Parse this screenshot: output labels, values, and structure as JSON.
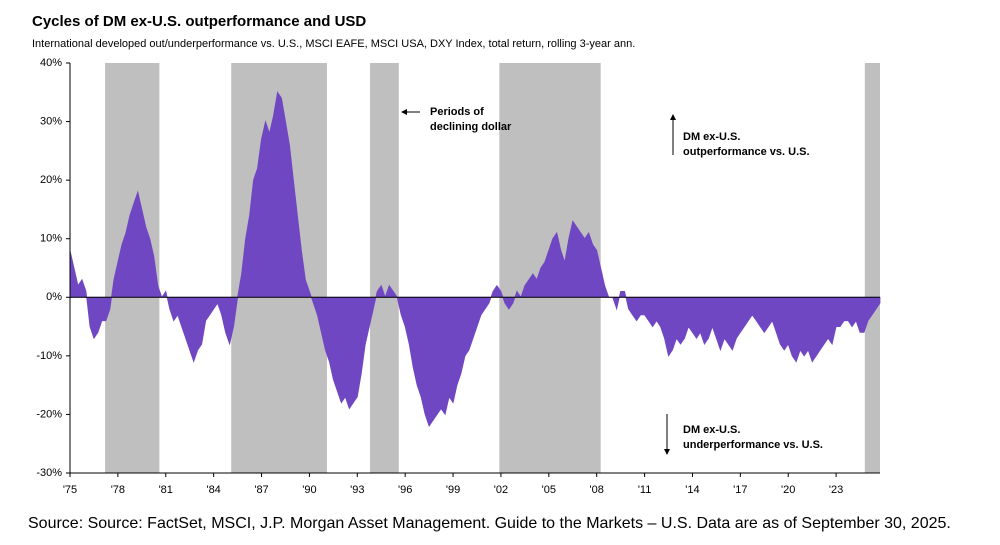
{
  "chart_data": {
    "type": "area",
    "title": "Cycles of DM ex-U.S. outperformance and USD",
    "subtitle": "International developed out/underperformance vs. U.S., MSCI EAFE, MSCI USA, DXY Index, total return, rolling 3-year ann.",
    "source": "Source: Source: FactSet, MSCI, J.P. Morgan Asset Management. Guide to the Markets – U.S. Data are as of September 30, 2025.",
    "color": "#7047c2",
    "shaded": {
      "color": "#bfbfbf",
      "label": [
        "Periods of",
        "declining dollar"
      ],
      "ranges": [
        [
          1977.2,
          1980.6
        ],
        [
          1985.1,
          1991.1
        ],
        [
          1993.8,
          1995.6
        ],
        [
          2001.9,
          2008.25
        ],
        [
          2024.8,
          2025.75
        ]
      ]
    },
    "annotations": [
      {
        "text": [
          "DM ex-U.S.",
          "outperformance vs. U.S."
        ]
      },
      {
        "text": [
          "DM ex-U.S.",
          "underperformance vs. U.S."
        ]
      }
    ],
    "xlim": [
      1975,
      2025.75
    ],
    "ylim": [
      -30,
      40
    ],
    "xticks": [
      {
        "value": 1975,
        "label": "'75"
      },
      {
        "value": 1978,
        "label": "'78"
      },
      {
        "value": 1981,
        "label": "'81"
      },
      {
        "value": 1984,
        "label": "'84"
      },
      {
        "value": 1987,
        "label": "'87"
      },
      {
        "value": 1990,
        "label": "'90"
      },
      {
        "value": 1993,
        "label": "'93"
      },
      {
        "value": 1996,
        "label": "'96"
      },
      {
        "value": 1999,
        "label": "'99"
      },
      {
        "value": 2002,
        "label": "'02"
      },
      {
        "value": 2005,
        "label": "'05"
      },
      {
        "value": 2008,
        "label": "'08"
      },
      {
        "value": 2011,
        "label": "'11"
      },
      {
        "value": 2014,
        "label": "'14"
      },
      {
        "value": 2017,
        "label": "'17"
      },
      {
        "value": 2020,
        "label": "'20"
      },
      {
        "value": 2023,
        "label": "'23"
      }
    ],
    "yticks": [
      {
        "value": 40,
        "label": "40%"
      },
      {
        "value": 30,
        "label": "30%"
      },
      {
        "value": 20,
        "label": "20%"
      },
      {
        "value": 10,
        "label": "10%"
      },
      {
        "value": 0,
        "label": "0%"
      },
      {
        "value": -10,
        "label": "-10%"
      },
      {
        "value": -20,
        "label": "-20%"
      },
      {
        "value": -30,
        "label": "-30%"
      }
    ],
    "x": [
      1975,
      1975.25,
      1975.5,
      1975.75,
      1976,
      1976.25,
      1976.5,
      1976.75,
      1977,
      1977.25,
      1977.5,
      1977.75,
      1978,
      1978.25,
      1978.5,
      1978.75,
      1979,
      1979.25,
      1979.5,
      1979.75,
      1980,
      1980.25,
      1980.5,
      1980.75,
      1981,
      1981.25,
      1981.5,
      1981.75,
      1982,
      1982.25,
      1982.5,
      1982.75,
      1983,
      1983.25,
      1983.5,
      1983.75,
      1984,
      1984.25,
      1984.5,
      1984.75,
      1985,
      1985.25,
      1985.5,
      1985.75,
      1986,
      1986.25,
      1986.5,
      1986.75,
      1987,
      1987.25,
      1987.5,
      1987.75,
      1988,
      1988.25,
      1988.5,
      1988.75,
      1989,
      1989.25,
      1989.5,
      1989.75,
      1990,
      1990.25,
      1990.5,
      1990.75,
      1991,
      1991.25,
      1991.5,
      1991.75,
      1992,
      1992.25,
      1992.5,
      1992.75,
      1993,
      1993.25,
      1993.5,
      1993.75,
      1994,
      1994.25,
      1994.5,
      1994.75,
      1995,
      1995.25,
      1995.5,
      1995.75,
      1996,
      1996.25,
      1996.5,
      1996.75,
      1997,
      1997.25,
      1997.5,
      1997.75,
      1998,
      1998.25,
      1998.5,
      1998.75,
      1999,
      1999.25,
      1999.5,
      1999.75,
      2000,
      2000.25,
      2000.5,
      2000.75,
      2001,
      2001.25,
      2001.5,
      2001.75,
      2002,
      2002.25,
      2002.5,
      2002.75,
      2003,
      2003.25,
      2003.5,
      2003.75,
      2004,
      2004.25,
      2004.5,
      2004.75,
      2005,
      2005.25,
      2005.5,
      2005.75,
      2006,
      2006.25,
      2006.5,
      2006.75,
      2007,
      2007.25,
      2007.5,
      2007.75,
      2008,
      2008.25,
      2008.5,
      2008.75,
      2009,
      2009.25,
      2009.5,
      2009.75,
      2010,
      2010.25,
      2010.5,
      2010.75,
      2011,
      2011.25,
      2011.5,
      2011.75,
      2012,
      2012.25,
      2012.5,
      2012.75,
      2013,
      2013.25,
      2013.5,
      2013.75,
      2014,
      2014.25,
      2014.5,
      2014.75,
      2015,
      2015.25,
      2015.5,
      2015.75,
      2016,
      2016.25,
      2016.5,
      2016.75,
      2017,
      2017.25,
      2017.5,
      2017.75,
      2018,
      2018.25,
      2018.5,
      2018.75,
      2019,
      2019.25,
      2019.5,
      2019.75,
      2020,
      2020.25,
      2020.5,
      2020.75,
      2021,
      2021.25,
      2021.5,
      2021.75,
      2022,
      2022.25,
      2022.5,
      2022.75,
      2023,
      2023.25,
      2023.5,
      2023.75,
      2024,
      2024.25,
      2024.5,
      2024.75,
      2025,
      2025.25,
      2025.5,
      2025.75
    ],
    "values": [
      8,
      5,
      2,
      3,
      1,
      -5,
      -7,
      -6,
      -4,
      -4,
      -2,
      3,
      6,
      9,
      11,
      14,
      16,
      18,
      15,
      12,
      10,
      7,
      2,
      0,
      1,
      -2,
      -4,
      -3,
      -5,
      -7,
      -9,
      -11,
      -9,
      -8,
      -4,
      -3,
      -2,
      -1,
      -3,
      -6,
      -8,
      -5,
      0,
      4,
      10,
      14,
      20,
      22,
      27,
      30,
      28,
      31,
      35,
      34,
      30,
      26,
      20,
      14,
      8,
      3,
      1,
      -1,
      -3,
      -6,
      -9,
      -11,
      -14,
      -16,
      -18,
      -17,
      -19,
      -18,
      -17,
      -13,
      -8,
      -5,
      -2,
      1,
      2,
      0,
      2,
      1,
      0,
      -3,
      -5,
      -8,
      -12,
      -15,
      -17,
      -20,
      -22,
      -21,
      -20,
      -19,
      -20,
      -17,
      -18,
      -15,
      -13,
      -10,
      -9,
      -7,
      -5,
      -3,
      -2,
      -1,
      1,
      2,
      1,
      -1,
      -2,
      -1,
      1,
      0,
      2,
      3,
      4,
      3,
      5,
      6,
      8,
      10,
      11,
      8,
      6,
      10,
      13,
      12,
      11,
      10,
      11,
      9,
      8,
      5,
      2,
      0,
      0,
      -2,
      1,
      1,
      -2,
      -3,
      -4,
      -3,
      -3,
      -4,
      -5,
      -4,
      -5,
      -7,
      -10,
      -9,
      -7,
      -8,
      -7,
      -5,
      -6,
      -7,
      -6,
      -8,
      -7,
      -5,
      -7,
      -9,
      -7,
      -8,
      -9,
      -7,
      -6,
      -5,
      -4,
      -3,
      -4,
      -5,
      -6,
      -5,
      -4,
      -6,
      -8,
      -9,
      -8,
      -10,
      -11,
      -9,
      -10,
      -9,
      -11,
      -10,
      -9,
      -8,
      -7,
      -8,
      -5,
      -5,
      -4,
      -4,
      -5,
      -4,
      -6,
      -6,
      -4,
      -3,
      -2,
      -1
    ]
  }
}
